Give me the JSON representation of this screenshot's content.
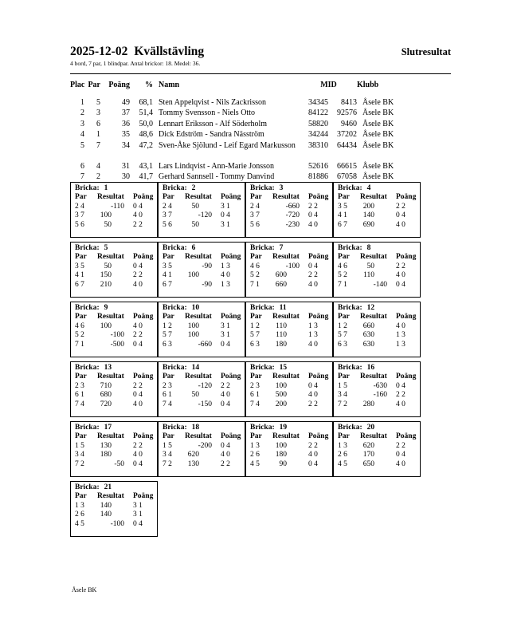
{
  "header": {
    "title_date": "2025-12-02",
    "title_name": "Kvällstävling",
    "right_title": "Slutresultat",
    "subtitle": "4 bord, 7 par, 1 blindpar. Antal brickor: 18. Medel: 36."
  },
  "results": {
    "header": {
      "plac": "Plac",
      "par": "Par",
      "poang": "Poäng",
      "pct": "%",
      "namn": "Namn",
      "mid": "MID",
      "klubb": "Klubb"
    },
    "rows": [
      {
        "plac": "1",
        "par": "5",
        "poang": "49",
        "pct": "68,1",
        "namn": "Sten Appelqvist - Nils Zackrisson",
        "mid1": "34345",
        "mid2": "8413",
        "klubb": "Åsele BK",
        "gap_before": false
      },
      {
        "plac": "2",
        "par": "3",
        "poang": "37",
        "pct": "51,4",
        "namn": "Tommy Svensson - Niels Otto",
        "mid1": "84122",
        "mid2": "92576",
        "klubb": "Åsele BK",
        "gap_before": false
      },
      {
        "plac": "3",
        "par": "6",
        "poang": "36",
        "pct": "50,0",
        "namn": "Lennart Eriksson - Alf Söderholm",
        "mid1": "58820",
        "mid2": "9460",
        "klubb": "Åsele BK",
        "gap_before": false
      },
      {
        "plac": "4",
        "par": "1",
        "poang": "35",
        "pct": "48,6",
        "namn": "Dick Edström - Sandra Näsström",
        "mid1": "34244",
        "mid2": "37202",
        "klubb": "Åsele BK",
        "gap_before": false
      },
      {
        "plac": "5",
        "par": "7",
        "poang": "34",
        "pct": "47,2",
        "namn": "Sven-Åke Sjölund - Leif Egard Markusson",
        "mid1": "38310",
        "mid2": "64434",
        "klubb": "Åsele BK",
        "gap_before": false
      },
      {
        "plac": "6",
        "par": "4",
        "poang": "31",
        "pct": "43,1",
        "namn": "Lars Lindqvist - Ann-Marie Jonsson",
        "mid1": "52616",
        "mid2": "66615",
        "klubb": "Åsele BK",
        "gap_before": true
      },
      {
        "plac": "7",
        "par": "2",
        "poang": "30",
        "pct": "41,7",
        "namn": "Gerhard Sannsell - Tommy Danvind",
        "mid1": "81886",
        "mid2": "67058",
        "klubb": "Åsele BK",
        "gap_before": false
      }
    ]
  },
  "board_label": "Bricka:",
  "board_header": {
    "par": "Par",
    "resultat": "Resultat",
    "poang": "Poäng"
  },
  "boards": [
    {
      "number": "1",
      "rows": [
        {
          "par": "2 4",
          "resultat": "-110",
          "poang": "0 4"
        },
        {
          "par": "3 7",
          "resultat": "100",
          "poang": "4 0"
        },
        {
          "par": "5 6",
          "resultat": "50",
          "poang": "2 2"
        }
      ]
    },
    {
      "number": "2",
      "rows": [
        {
          "par": "2 4",
          "resultat": "50",
          "poang": "3 1"
        },
        {
          "par": "3 7",
          "resultat": "-120",
          "poang": "0 4"
        },
        {
          "par": "5 6",
          "resultat": "50",
          "poang": "3 1"
        }
      ]
    },
    {
      "number": "3",
      "rows": [
        {
          "par": "2 4",
          "resultat": "-660",
          "poang": "2 2"
        },
        {
          "par": "3 7",
          "resultat": "-720",
          "poang": "0 4"
        },
        {
          "par": "5 6",
          "resultat": "-230",
          "poang": "4 0"
        }
      ]
    },
    {
      "number": "4",
      "rows": [
        {
          "par": "3 5",
          "resultat": "200",
          "poang": "2 2"
        },
        {
          "par": "4 1",
          "resultat": "140",
          "poang": "0 4"
        },
        {
          "par": "6 7",
          "resultat": "690",
          "poang": "4 0"
        }
      ]
    },
    {
      "number": "5",
      "rows": [
        {
          "par": "3 5",
          "resultat": "50",
          "poang": "0 4"
        },
        {
          "par": "4 1",
          "resultat": "150",
          "poang": "2 2"
        },
        {
          "par": "6 7",
          "resultat": "210",
          "poang": "4 0"
        }
      ]
    },
    {
      "number": "6",
      "rows": [
        {
          "par": "3 5",
          "resultat": "-90",
          "poang": "1 3"
        },
        {
          "par": "4 1",
          "resultat": "100",
          "poang": "4 0"
        },
        {
          "par": "6 7",
          "resultat": "-90",
          "poang": "1 3"
        }
      ]
    },
    {
      "number": "7",
      "rows": [
        {
          "par": "4 6",
          "resultat": "-100",
          "poang": "0 4"
        },
        {
          "par": "5 2",
          "resultat": "600",
          "poang": "2 2"
        },
        {
          "par": "7 1",
          "resultat": "660",
          "poang": "4 0"
        }
      ]
    },
    {
      "number": "8",
      "rows": [
        {
          "par": "4 6",
          "resultat": "50",
          "poang": "2 2"
        },
        {
          "par": "5 2",
          "resultat": "110",
          "poang": "4 0"
        },
        {
          "par": "7 1",
          "resultat": "-140",
          "poang": "0 4"
        }
      ]
    },
    {
      "number": "9",
      "rows": [
        {
          "par": "4 6",
          "resultat": "100",
          "poang": "4 0"
        },
        {
          "par": "5 2",
          "resultat": "-100",
          "poang": "2 2"
        },
        {
          "par": "7 1",
          "resultat": "-500",
          "poang": "0 4"
        }
      ]
    },
    {
      "number": "10",
      "rows": [
        {
          "par": "1 2",
          "resultat": "100",
          "poang": "3 1"
        },
        {
          "par": "5 7",
          "resultat": "100",
          "poang": "3 1"
        },
        {
          "par": "6 3",
          "resultat": "-660",
          "poang": "0 4"
        }
      ]
    },
    {
      "number": "11",
      "rows": [
        {
          "par": "1 2",
          "resultat": "110",
          "poang": "1 3"
        },
        {
          "par": "5 7",
          "resultat": "110",
          "poang": "1 3"
        },
        {
          "par": "6 3",
          "resultat": "180",
          "poang": "4 0"
        }
      ]
    },
    {
      "number": "12",
      "rows": [
        {
          "par": "1 2",
          "resultat": "660",
          "poang": "4 0"
        },
        {
          "par": "5 7",
          "resultat": "630",
          "poang": "1 3"
        },
        {
          "par": "6 3",
          "resultat": "630",
          "poang": "1 3"
        }
      ]
    },
    {
      "number": "13",
      "rows": [
        {
          "par": "2 3",
          "resultat": "710",
          "poang": "2 2"
        },
        {
          "par": "6 1",
          "resultat": "680",
          "poang": "0 4"
        },
        {
          "par": "7 4",
          "resultat": "720",
          "poang": "4 0"
        }
      ]
    },
    {
      "number": "14",
      "rows": [
        {
          "par": "2 3",
          "resultat": "-120",
          "poang": "2 2"
        },
        {
          "par": "6 1",
          "resultat": "50",
          "poang": "4 0"
        },
        {
          "par": "7 4",
          "resultat": "-150",
          "poang": "0 4"
        }
      ]
    },
    {
      "number": "15",
      "rows": [
        {
          "par": "2 3",
          "resultat": "100",
          "poang": "0 4"
        },
        {
          "par": "6 1",
          "resultat": "500",
          "poang": "4 0"
        },
        {
          "par": "7 4",
          "resultat": "200",
          "poang": "2 2"
        }
      ]
    },
    {
      "number": "16",
      "rows": [
        {
          "par": "1 5",
          "resultat": "-630",
          "poang": "0 4"
        },
        {
          "par": "3 4",
          "resultat": "-160",
          "poang": "2 2"
        },
        {
          "par": "7 2",
          "resultat": "280",
          "poang": "4 0"
        }
      ]
    },
    {
      "number": "17",
      "rows": [
        {
          "par": "1 5",
          "resultat": "130",
          "poang": "2 2"
        },
        {
          "par": "3 4",
          "resultat": "180",
          "poang": "4 0"
        },
        {
          "par": "7 2",
          "resultat": "-50",
          "poang": "0 4"
        }
      ]
    },
    {
      "number": "18",
      "rows": [
        {
          "par": "1 5",
          "resultat": "-200",
          "poang": "0 4"
        },
        {
          "par": "3 4",
          "resultat": "620",
          "poang": "4 0"
        },
        {
          "par": "7 2",
          "resultat": "130",
          "poang": "2 2"
        }
      ]
    },
    {
      "number": "19",
      "rows": [
        {
          "par": "1 3",
          "resultat": "100",
          "poang": "2 2"
        },
        {
          "par": "2 6",
          "resultat": "180",
          "poang": "4 0"
        },
        {
          "par": "4 5",
          "resultat": "90",
          "poang": "0 4"
        }
      ]
    },
    {
      "number": "20",
      "rows": [
        {
          "par": "1 3",
          "resultat": "620",
          "poang": "2 2"
        },
        {
          "par": "2 6",
          "resultat": "170",
          "poang": "0 4"
        },
        {
          "par": "4 5",
          "resultat": "650",
          "poang": "4 0"
        }
      ]
    },
    {
      "number": "21",
      "rows": [
        {
          "par": "1 3",
          "resultat": "140",
          "poang": "3 1"
        },
        {
          "par": "2 6",
          "resultat": "140",
          "poang": "3 1"
        },
        {
          "par": "4 5",
          "resultat": "-100",
          "poang": "0 4"
        }
      ]
    }
  ],
  "footer": {
    "club": "Åsele BK"
  }
}
